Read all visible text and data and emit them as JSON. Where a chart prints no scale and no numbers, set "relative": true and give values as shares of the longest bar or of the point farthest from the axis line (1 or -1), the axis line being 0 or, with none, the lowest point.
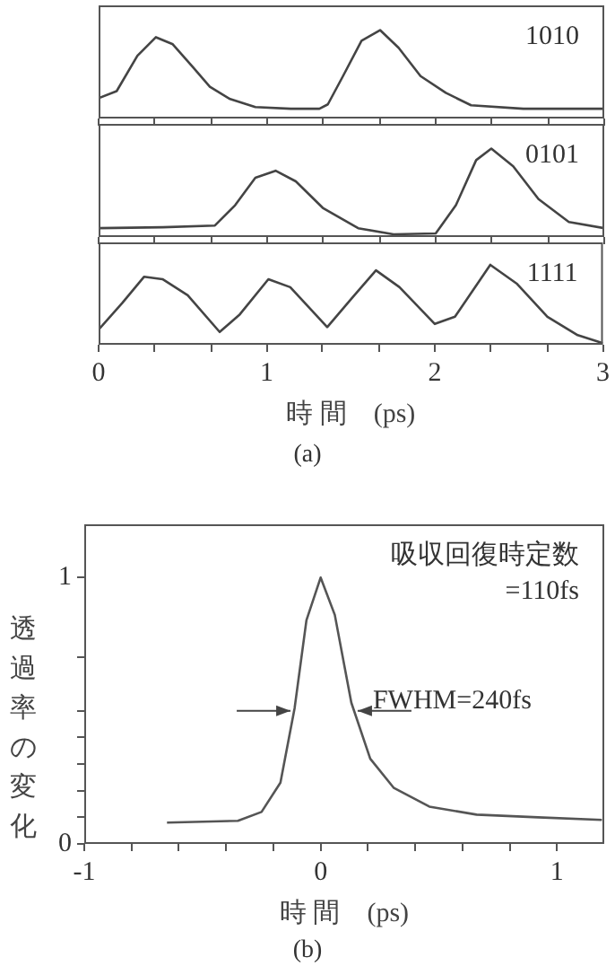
{
  "chart_data": [
    {
      "type": "line",
      "relative": true,
      "color": "#444444",
      "xlim": [
        0,
        3
      ],
      "tick_labels": false,
      "annotations": [
        "1010"
      ],
      "xticks": [
        0,
        {
          "value": 0.33,
          "label": null
        },
        {
          "value": 0.67,
          "label": null
        },
        1,
        {
          "value": 1.33,
          "label": null
        },
        {
          "value": 1.67,
          "label": null
        },
        2,
        {
          "value": 2.33,
          "label": null
        },
        {
          "value": 2.67,
          "label": null
        },
        3
      ],
      "x": [
        0,
        0.107,
        0.23,
        0.34,
        0.44,
        0.56,
        0.66,
        0.78,
        0.93,
        1.14,
        1.31,
        1.36,
        1.45,
        1.56,
        1.67,
        1.78,
        1.91,
        2.06,
        2.21,
        2.52,
        3
      ],
      "values": [
        0.23,
        0.31,
        0.71,
        0.92,
        0.84,
        0.58,
        0.36,
        0.22,
        0.13,
        0.11,
        0.11,
        0.16,
        0.48,
        0.88,
        1,
        0.8,
        0.48,
        0.29,
        0.15,
        0.11,
        0.11
      ]
    },
    {
      "type": "line",
      "relative": true,
      "color": "#444444",
      "xlim": [
        0,
        3
      ],
      "tick_labels": false,
      "annotations": [
        "0101"
      ],
      "xticks": [
        0,
        {
          "value": 0.33,
          "label": null
        },
        {
          "value": 0.67,
          "label": null
        },
        1,
        {
          "value": 1.33,
          "label": null
        },
        {
          "value": 1.67,
          "label": null
        },
        2,
        {
          "value": 2.33,
          "label": null
        },
        {
          "value": 2.67,
          "label": null
        },
        3
      ],
      "x": [
        0,
        0.38,
        0.69,
        0.81,
        0.93,
        1.05,
        1.17,
        1.33,
        1.54,
        1.75,
        2.0,
        2.12,
        2.24,
        2.33,
        2.46,
        2.61,
        2.79,
        3
      ],
      "values": [
        0.1,
        0.11,
        0.13,
        0.36,
        0.67,
        0.75,
        0.63,
        0.33,
        0.1,
        0.03,
        0.04,
        0.36,
        0.87,
        1,
        0.8,
        0.43,
        0.17,
        0.1
      ]
    },
    {
      "type": "line",
      "relative": true,
      "color": "#444444",
      "xlim": [
        0,
        3
      ],
      "tick_labels": "x",
      "xlabel": "時 間　(ps)",
      "annotations": [
        "1111",
        "(a)"
      ],
      "xticks": [
        0,
        {
          "value": 0.33,
          "label": null
        },
        {
          "value": 0.67,
          "label": null
        },
        1,
        {
          "value": 1.33,
          "label": null
        },
        {
          "value": 1.67,
          "label": null
        },
        2,
        {
          "value": 2.33,
          "label": null
        },
        {
          "value": 2.67,
          "label": null
        },
        3
      ],
      "x": [
        0,
        0.14,
        0.27,
        0.38,
        0.53,
        0.72,
        0.84,
        1.01,
        1.14,
        1.36,
        1.51,
        1.65,
        1.79,
        2.0,
        2.12,
        2.33,
        2.49,
        2.67,
        2.85,
        3
      ],
      "values": [
        0.19,
        0.52,
        0.85,
        0.82,
        0.62,
        0.16,
        0.38,
        0.82,
        0.72,
        0.22,
        0.59,
        0.93,
        0.72,
        0.26,
        0.35,
        1,
        0.76,
        0.35,
        0.12,
        0.02
      ]
    },
    {
      "type": "line",
      "color": "#555555",
      "xlim": [
        -1,
        1.2
      ],
      "ylim": [
        0,
        1.2
      ],
      "xlabel": "時 間　(ps)",
      "ylabel": "透過率の変化",
      "xticks": [
        -1,
        {
          "value": -0.8,
          "label": null
        },
        {
          "value": -0.6,
          "label": null
        },
        {
          "value": -0.4,
          "label": null
        },
        {
          "value": -0.2,
          "label": null
        },
        0,
        {
          "value": 0.2,
          "label": null
        },
        {
          "value": 0.4,
          "label": null
        },
        {
          "value": 0.6,
          "label": null
        },
        {
          "value": 0.8,
          "label": null
        },
        1
      ],
      "yticks": [
        0,
        {
          "value": 0.1,
          "label": null
        },
        {
          "value": 0.2,
          "label": null
        },
        {
          "value": 0.3,
          "label": null
        },
        {
          "value": 0.4,
          "label": null
        },
        {
          "value": 0.5,
          "label": null
        },
        {
          "value": 0.7,
          "label": null
        },
        1
      ],
      "x": [
        -0.65,
        -0.35,
        -0.25,
        -0.17,
        -0.11,
        -0.06,
        0,
        0.06,
        0.13,
        0.21,
        0.31,
        0.46,
        0.66,
        0.92,
        1.19
      ],
      "values": [
        0.08,
        0.087,
        0.12,
        0.23,
        0.51,
        0.84,
        1,
        0.86,
        0.53,
        0.32,
        0.21,
        0.14,
        0.11,
        0.1,
        0.09
      ],
      "annotations": [
        "吸収回復時定数",
        "=110fs",
        {
          "text": "FWHM=240fs",
          "x": 0.13,
          "y": 0.5
        },
        "(b)"
      ]
    }
  ]
}
